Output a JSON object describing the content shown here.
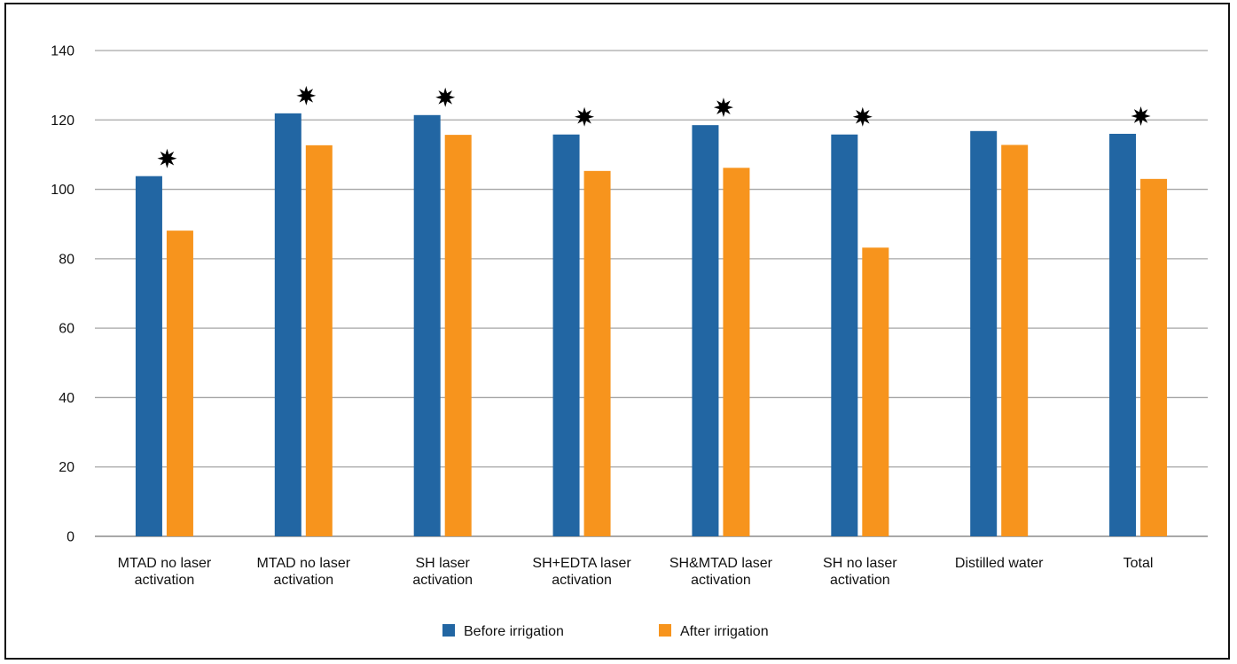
{
  "chart_data": {
    "type": "bar",
    "title": "",
    "xlabel": "",
    "ylabel": "",
    "ylim": [
      0,
      140
    ],
    "yticks": [
      0,
      20,
      40,
      60,
      80,
      100,
      120,
      140
    ],
    "grid": true,
    "legend_position": "bottom",
    "categories": [
      [
        "MTAD no laser",
        "activation"
      ],
      [
        "MTAD no laser",
        "activation"
      ],
      [
        "SH laser",
        "activation"
      ],
      [
        "SH+EDTA laser",
        "activation"
      ],
      [
        "SH&MTAD laser",
        "activation"
      ],
      [
        "SH no laser",
        "activation"
      ],
      [
        "Distilled water"
      ],
      [
        "Total"
      ]
    ],
    "series": [
      {
        "name": "Before irrigation",
        "color": "#2266a3",
        "values": [
          103.8,
          121.9,
          121.4,
          115.8,
          118.5,
          115.8,
          116.8,
          116.0
        ]
      },
      {
        "name": "After irrigation",
        "color": "#f7941d",
        "values": [
          88.1,
          112.7,
          115.7,
          105.3,
          106.2,
          83.2,
          112.8,
          103.0
        ]
      }
    ],
    "significant": [
      true,
      true,
      true,
      true,
      true,
      true,
      false,
      true
    ],
    "significance_marker": "star-icon"
  }
}
